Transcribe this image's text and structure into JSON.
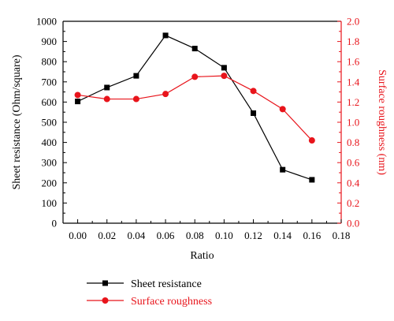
{
  "chart_data": {
    "type": "line",
    "title": "",
    "xlabel": "Ratio",
    "ylabel_left": "Sheet resistance (Ohm/square)",
    "ylabel_right": "Surface roughness (nm)",
    "xlim": [
      -0.01,
      0.18
    ],
    "ylim_left": [
      0,
      1000
    ],
    "ylim_right": [
      0,
      2.0
    ],
    "x_ticks": [
      0.0,
      0.02,
      0.04,
      0.06,
      0.08,
      0.1,
      0.12,
      0.14,
      0.16,
      0.18
    ],
    "x_tick_labels": [
      "0.00",
      "0.02",
      "0.04",
      "0.06",
      "0.08",
      "0.10",
      "0.12",
      "0.14",
      "0.16",
      "0.18"
    ],
    "y_left_ticks": [
      0,
      100,
      200,
      300,
      400,
      500,
      600,
      700,
      800,
      900,
      1000
    ],
    "y_left_tick_labels": [
      "0",
      "100",
      "200",
      "300",
      "400",
      "500",
      "600",
      "700",
      "800",
      "900",
      "1000"
    ],
    "y_right_ticks": [
      0,
      0.2,
      0.4,
      0.6,
      0.8,
      1.0,
      1.2,
      1.4,
      1.6,
      1.8,
      2.0
    ],
    "y_right_tick_labels": [
      "0.0",
      "0.2",
      "0.4",
      "0.6",
      "0.8",
      "1.0",
      "1.2",
      "1.4",
      "1.6",
      "1.8",
      "2.0"
    ],
    "grid": false,
    "legend_position": "bottom-left, below plot",
    "series": [
      {
        "name": "Sheet resistance",
        "axis": "left",
        "color": "#000000",
        "marker": "square",
        "x": [
          0.0,
          0.02,
          0.04,
          0.06,
          0.08,
          0.1,
          0.12,
          0.14,
          0.16
        ],
        "values": [
          603,
          672,
          730,
          930,
          865,
          770,
          545,
          265,
          215
        ]
      },
      {
        "name": "Surface roughness",
        "axis": "right",
        "color": "#e8141b",
        "marker": "circle",
        "x": [
          0.0,
          0.02,
          0.04,
          0.06,
          0.08,
          0.1,
          0.12,
          0.14,
          0.16
        ],
        "values": [
          1.27,
          1.23,
          1.23,
          1.28,
          1.45,
          1.46,
          1.31,
          1.13,
          0.82
        ]
      }
    ],
    "right_axis_color": "#e8141b"
  }
}
